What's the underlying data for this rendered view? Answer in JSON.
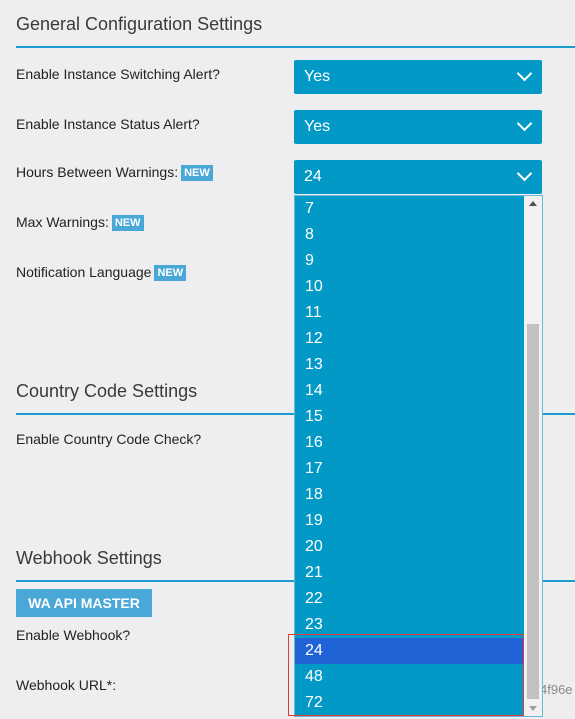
{
  "general": {
    "title": "General Configuration Settings",
    "switching_label": "Enable Instance Switching Alert?",
    "switching_value": "Yes",
    "status_label": "Enable Instance Status Alert?",
    "status_value": "Yes",
    "hours_label": "Hours Between Warnings:",
    "hours_value": "24",
    "max_label": "Max Warnings:",
    "lang_label": "Notification Language",
    "new_badge": "NEW"
  },
  "country": {
    "title": "Country Code Settings",
    "check_label": "Enable Country Code Check?"
  },
  "webhook": {
    "title": "Webhook Settings",
    "master_button": "WA API MASTER",
    "enable_label": "Enable Webhook?",
    "url_label": "Webhook URL*:",
    "url_value_partial": "4f96e"
  },
  "dropdown": {
    "options": [
      "7",
      "8",
      "9",
      "10",
      "11",
      "12",
      "13",
      "14",
      "15",
      "16",
      "17",
      "18",
      "19",
      "20",
      "21",
      "22",
      "23",
      "24",
      "48",
      "72"
    ],
    "selected": "24"
  },
  "colors": {
    "accent": "#0399c6",
    "badge": "#4aa8d8",
    "selected_option": "#1f63d6",
    "highlight": "#e03a3a"
  },
  "icons": [
    "chevron-down-icon",
    "scroll-up-icon",
    "scroll-down-icon"
  ]
}
